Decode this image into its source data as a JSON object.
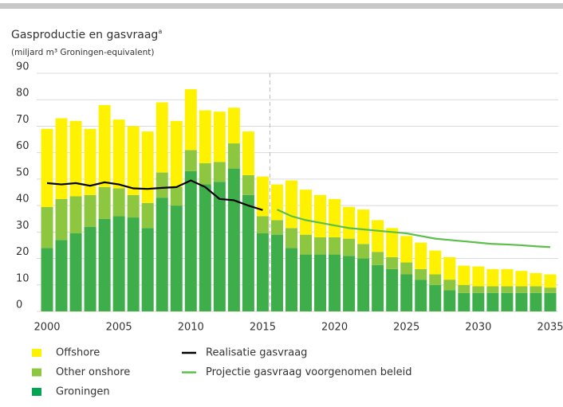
{
  "chart_data": {
    "type": "bar",
    "stacked": true,
    "title": "Gasproductie en gasvraag",
    "title_note": "a",
    "subtitle": "(miljard m³ Groningen-equivalent)",
    "categories": [
      "2000",
      null,
      null,
      null,
      null,
      "2005",
      null,
      null,
      null,
      null,
      "2010",
      null,
      null,
      null,
      null,
      "2015",
      null,
      null,
      null,
      null,
      "2020",
      null,
      null,
      null,
      null,
      "2025",
      null,
      null,
      null,
      null,
      "2030",
      null,
      null,
      null,
      null,
      "2035"
    ],
    "series": [
      {
        "name": "Groningen",
        "color": "#3dae4a",
        "legend_color": "#00a651",
        "values": [
          24,
          27,
          29.5,
          32,
          35,
          36,
          35.5,
          31.5,
          43,
          40,
          53,
          48,
          49,
          54,
          44,
          29.5,
          29,
          24,
          21.5,
          21.5,
          21.5,
          21,
          20,
          17.5,
          16,
          14,
          12,
          10,
          8,
          7,
          7,
          7,
          7,
          7,
          7,
          7
        ]
      },
      {
        "name": "Other onshore",
        "color": "#8dc63f",
        "values": [
          15.5,
          15.5,
          14,
          12,
          12,
          10.5,
          8.5,
          9.5,
          9.5,
          7,
          8,
          8,
          7.5,
          9.5,
          7.5,
          6.5,
          5.5,
          7.5,
          7.5,
          6.5,
          6.5,
          6.5,
          5.5,
          5,
          4.5,
          4.5,
          4,
          4,
          4,
          3,
          2.5,
          2.5,
          2.5,
          2.5,
          2.5,
          2
        ]
      },
      {
        "name": "Offshore",
        "color": "#fff200",
        "values": [
          29.5,
          30.5,
          28.5,
          25,
          31,
          26,
          26,
          27,
          26.5,
          25,
          23,
          20,
          19,
          13.5,
          16.5,
          15,
          13.5,
          18,
          17,
          16,
          14.5,
          12,
          13,
          12,
          11,
          10,
          10,
          9,
          8.5,
          7.3,
          7.5,
          6.5,
          6.5,
          5.8,
          5,
          5
        ]
      },
      {
        "name": "Realisatie gasvraag",
        "type": "line",
        "color": "#000000",
        "values": [
          48.5,
          48,
          48.5,
          47.5,
          48.8,
          48,
          46.5,
          46.3,
          46.7,
          47,
          49.5,
          47,
          42.5,
          42,
          40,
          38.3,
          null,
          null,
          null,
          null,
          null,
          null,
          null,
          null,
          null,
          null,
          null,
          null,
          null,
          null,
          null,
          null,
          null,
          null,
          null,
          null
        ]
      },
      {
        "name": "Projectie gasvraag voorgenomen beleid",
        "type": "line",
        "color": "#5cbf4a",
        "values": [
          null,
          null,
          null,
          null,
          null,
          null,
          null,
          null,
          null,
          null,
          null,
          null,
          null,
          null,
          null,
          null,
          38.5,
          36,
          34.5,
          33.5,
          32.5,
          31.5,
          31,
          30.5,
          30,
          29.5,
          28.5,
          27.5,
          27,
          26.5,
          26,
          25.5,
          25.3,
          25,
          24.6,
          24.3
        ]
      }
    ],
    "ylim": [
      0,
      90
    ],
    "yticks": [
      0,
      10,
      20,
      30,
      40,
      50,
      60,
      70,
      80,
      90
    ],
    "grid": true
  }
}
